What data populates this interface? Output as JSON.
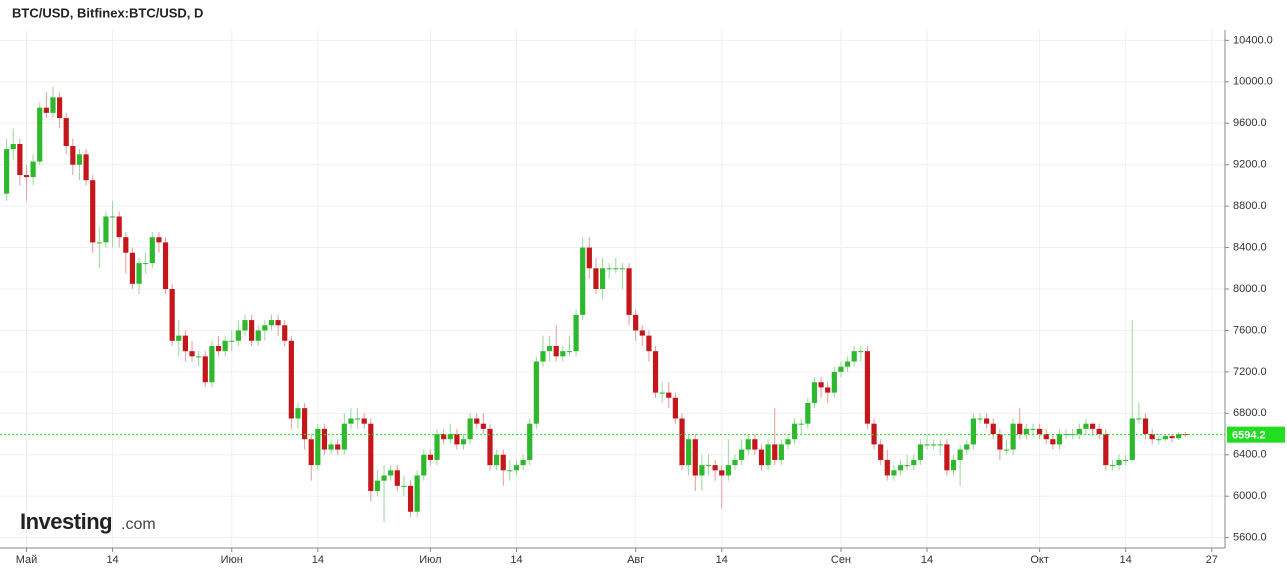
{
  "chart_data": {
    "type": "candlestick",
    "title": "BTC/USD, Bitfinex:BTC/USD, D",
    "watermark": "Investing",
    "watermark_suffix": ".com",
    "up_color": "#2eb82e",
    "down_color": "#c4171b",
    "last_price_color": "#22dd22",
    "grid": true,
    "xlim": [
      "04-27",
      "10-29"
    ],
    "ylim": [
      5500,
      10500
    ],
    "xticks": [
      {
        "value": "05-01",
        "label": "Май"
      },
      {
        "value": "05-14",
        "label": "14"
      },
      {
        "value": "06-01",
        "label": "Июн"
      },
      {
        "value": "06-14",
        "label": "14"
      },
      {
        "value": "07-01",
        "label": "Июл"
      },
      {
        "value": "07-14",
        "label": "14"
      },
      {
        "value": "08-01",
        "label": "Авг"
      },
      {
        "value": "08-14",
        "label": "14"
      },
      {
        "value": "09-01",
        "label": "Сен"
      },
      {
        "value": "09-14",
        "label": "14"
      },
      {
        "value": "10-01",
        "label": "Окт"
      },
      {
        "value": "10-14",
        "label": "14"
      },
      {
        "value": "10-27",
        "label": "27"
      }
    ],
    "yticks": [
      {
        "value": 5600,
        "label": "5600.0"
      },
      {
        "value": 6000,
        "label": "6000.0"
      },
      {
        "value": 6400,
        "label": "6400.0"
      },
      {
        "value": 6800,
        "label": "6800.0"
      },
      {
        "value": 7200,
        "label": "7200.0"
      },
      {
        "value": 7600,
        "label": "7600.0"
      },
      {
        "value": 8000,
        "label": "8000.0"
      },
      {
        "value": 8400,
        "label": "8400.0"
      },
      {
        "value": 8800,
        "label": "8800.0"
      },
      {
        "value": 9200,
        "label": "9200.0"
      },
      {
        "value": 9600,
        "label": "9600.0"
      },
      {
        "value": 10000,
        "label": "10000.0"
      },
      {
        "value": 10400,
        "label": "10400.0"
      }
    ],
    "x": [
      "04-28",
      "04-29",
      "04-30",
      "05-01",
      "05-02",
      "05-03",
      "05-04",
      "05-05",
      "05-06",
      "05-07",
      "05-08",
      "05-09",
      "05-10",
      "05-11",
      "05-12",
      "05-13",
      "05-14",
      "05-15",
      "05-16",
      "05-17",
      "05-18",
      "05-19",
      "05-20",
      "05-21",
      "05-22",
      "05-23",
      "05-24",
      "05-25",
      "05-26",
      "05-27",
      "05-28",
      "05-29",
      "05-30",
      "05-31",
      "06-01",
      "06-02",
      "06-03",
      "06-04",
      "06-05",
      "06-06",
      "06-07",
      "06-08",
      "06-09",
      "06-10",
      "06-11",
      "06-12",
      "06-13",
      "06-14",
      "06-15",
      "06-16",
      "06-17",
      "06-18",
      "06-19",
      "06-20",
      "06-21",
      "06-22",
      "06-23",
      "06-24",
      "06-25",
      "06-26",
      "06-27",
      "06-28",
      "06-29",
      "06-30",
      "07-01",
      "07-02",
      "07-03",
      "07-04",
      "07-05",
      "07-06",
      "07-07",
      "07-08",
      "07-09",
      "07-10",
      "07-11",
      "07-12",
      "07-13",
      "07-14",
      "07-15",
      "07-16",
      "07-17",
      "07-18",
      "07-19",
      "07-20",
      "07-21",
      "07-22",
      "07-23",
      "07-24",
      "07-25",
      "07-26",
      "07-27",
      "07-28",
      "07-29",
      "07-30",
      "07-31",
      "08-01",
      "08-02",
      "08-03",
      "08-04",
      "08-05",
      "08-06",
      "08-07",
      "08-08",
      "08-09",
      "08-10",
      "08-11",
      "08-12",
      "08-13",
      "08-14",
      "08-15",
      "08-16",
      "08-17",
      "08-18",
      "08-19",
      "08-20",
      "08-21",
      "08-22",
      "08-23",
      "08-24",
      "08-25",
      "08-26",
      "08-27",
      "08-28",
      "08-29",
      "08-30",
      "08-31",
      "09-01",
      "09-02",
      "09-03",
      "09-04",
      "09-05",
      "09-06",
      "09-07",
      "09-08",
      "09-09",
      "09-10",
      "09-11",
      "09-12",
      "09-13",
      "09-14",
      "09-15",
      "09-16",
      "09-17",
      "09-18",
      "09-19",
      "09-20",
      "09-21",
      "09-22",
      "09-23",
      "09-24",
      "09-25",
      "09-26",
      "09-27",
      "09-28",
      "09-29",
      "09-30",
      "10-01",
      "10-02",
      "10-03",
      "10-04",
      "10-05",
      "10-06",
      "10-07",
      "10-08",
      "10-09",
      "10-10",
      "10-11",
      "10-12",
      "10-13",
      "10-14",
      "10-15",
      "10-16",
      "10-17",
      "10-18",
      "10-19",
      "10-20",
      "10-21",
      "10-22",
      "10-23"
    ],
    "open": [
      8920,
      9350,
      9400,
      9100,
      9080,
      9230,
      9750,
      9700,
      9850,
      9650,
      9380,
      9200,
      9300,
      9050,
      8450,
      8450,
      8700,
      8700,
      8500,
      8350,
      8050,
      8250,
      8250,
      8500,
      8450,
      8000,
      7500,
      7550,
      7400,
      7350,
      7350,
      7100,
      7450,
      7400,
      7500,
      7500,
      7600,
      7700,
      7500,
      7600,
      7650,
      7700,
      7650,
      7500,
      6750,
      6850,
      6550,
      6300,
      6650,
      6450,
      6500,
      6450,
      6700,
      6750,
      6750,
      6700,
      6050,
      6150,
      6200,
      6250,
      6100,
      6100,
      5850,
      6200,
      6400,
      6350,
      6600,
      6550,
      6600,
      6500,
      6550,
      6750,
      6700,
      6650,
      6300,
      6400,
      6250,
      6250,
      6300,
      6350,
      6700,
      7300,
      7400,
      7450,
      7350,
      7400,
      7400,
      7750,
      8400,
      8200,
      8000,
      8200,
      8200,
      8200,
      8200,
      7750,
      7600,
      7550,
      7400,
      7000,
      7000,
      6950,
      6750,
      6300,
      6550,
      6200,
      6300,
      6300,
      6250,
      6200,
      6300,
      6350,
      6450,
      6550,
      6450,
      6300,
      6500,
      6350,
      6500,
      6550,
      6700,
      6700,
      6900,
      7100,
      7050,
      7000,
      7200,
      7250,
      7300,
      7400,
      7400,
      6700,
      6500,
      6350,
      6200,
      6250,
      6300,
      6300,
      6350,
      6500,
      6500,
      6500,
      6500,
      6250,
      6350,
      6450,
      6500,
      6750,
      6750,
      6700,
      6600,
      6450,
      6450,
      6700,
      6600,
      6650,
      6650,
      6600,
      6550,
      6500,
      6600,
      6600,
      6600,
      6650,
      6700,
      6650,
      6600,
      6300,
      6300,
      6350,
      6350,
      6750,
      6750,
      6600,
      6550,
      6550,
      6580,
      6560,
      6600
    ],
    "high": [
      9450,
      9550,
      9450,
      9200,
      9300,
      9800,
      9900,
      9950,
      9900,
      9700,
      9450,
      9350,
      9350,
      9100,
      8600,
      8750,
      8850,
      8750,
      8550,
      8400,
      8300,
      8350,
      8550,
      8550,
      8500,
      8050,
      7700,
      7600,
      7500,
      7400,
      7400,
      7500,
      7550,
      7550,
      7600,
      7700,
      7750,
      7750,
      7650,
      7700,
      7750,
      7750,
      7700,
      7550,
      6900,
      6900,
      6600,
      6700,
      6700,
      6550,
      6550,
      6800,
      6850,
      6850,
      6800,
      6750,
      6250,
      6300,
      6300,
      6300,
      6200,
      6150,
      6250,
      6450,
      6450,
      6650,
      6650,
      6700,
      6650,
      6600,
      6800,
      6800,
      6800,
      6700,
      6450,
      6450,
      6350,
      6350,
      6400,
      6750,
      7350,
      7550,
      7550,
      7650,
      7450,
      7550,
      7800,
      8500,
      8500,
      8300,
      8300,
      8250,
      8300,
      8250,
      8250,
      7800,
      7650,
      7600,
      7450,
      7100,
      7100,
      7000,
      6800,
      6600,
      6600,
      6400,
      6400,
      6350,
      6300,
      6550,
      6400,
      6550,
      6600,
      6600,
      6500,
      6550,
      6850,
      6550,
      6600,
      6750,
      6750,
      6950,
      7150,
      7150,
      7100,
      7250,
      7300,
      7350,
      7450,
      7450,
      7450,
      6750,
      6550,
      6450,
      6300,
      6350,
      6400,
      6400,
      6550,
      6600,
      6550,
      6550,
      6550,
      6400,
      6500,
      6550,
      6800,
      6800,
      6800,
      6750,
      6650,
      6550,
      6750,
      6850,
      6700,
      6700,
      6700,
      6650,
      6600,
      6650,
      6650,
      6650,
      6700,
      6750,
      6700,
      6700,
      6650,
      6350,
      6400,
      6400,
      7700,
      6900,
      6800,
      6650,
      6600,
      6600,
      6600,
      6620,
      6620
    ],
    "low": [
      8850,
      9250,
      9000,
      8850,
      9000,
      9200,
      9650,
      9650,
      9550,
      9300,
      9100,
      9050,
      9000,
      8350,
      8200,
      8400,
      8400,
      8400,
      8150,
      8000,
      7950,
      8150,
      8200,
      8350,
      7950,
      7450,
      7350,
      7300,
      7300,
      7250,
      7050,
      7050,
      7350,
      7350,
      7400,
      7450,
      7550,
      7450,
      7450,
      7500,
      7600,
      7550,
      7450,
      6650,
      6650,
      6450,
      6150,
      6250,
      6400,
      6400,
      6400,
      6400,
      6650,
      6650,
      6650,
      5950,
      6000,
      5750,
      6150,
      6050,
      6000,
      5800,
      5800,
      6150,
      6300,
      6300,
      6500,
      6500,
      6450,
      6450,
      6500,
      6650,
      6600,
      6250,
      6250,
      6100,
      6150,
      6200,
      6250,
      6300,
      6650,
      7250,
      7300,
      7300,
      7300,
      7350,
      7350,
      7700,
      8100,
      7950,
      7900,
      8100,
      8150,
      8000,
      7650,
      7500,
      7450,
      7300,
      6950,
      6900,
      6850,
      6700,
      6250,
      6200,
      6050,
      6050,
      6200,
      6150,
      5880,
      6150,
      6250,
      6300,
      6400,
      6400,
      6250,
      6250,
      6300,
      6300,
      6450,
      6500,
      6600,
      6650,
      6850,
      6950,
      6900,
      6950,
      7150,
      7200,
      7250,
      7300,
      6650,
      6450,
      6300,
      6150,
      6150,
      6200,
      6250,
      6250,
      6300,
      6450,
      6450,
      6400,
      6200,
      6200,
      6100,
      6400,
      6450,
      6700,
      6650,
      6550,
      6350,
      6400,
      6400,
      6550,
      6550,
      6600,
      6550,
      6500,
      6450,
      6450,
      6550,
      6550,
      6550,
      6600,
      6600,
      6550,
      6250,
      6250,
      6250,
      6300,
      6350,
      6700,
      6550,
      6500,
      6500,
      6530,
      6520,
      6540,
      6570
    ],
    "close": [
      9350,
      9400,
      9100,
      9080,
      9230,
      9750,
      9700,
      9850,
      9650,
      9380,
      9200,
      9300,
      9050,
      8450,
      8450,
      8700,
      8700,
      8500,
      8350,
      8050,
      8250,
      8250,
      8500,
      8450,
      8000,
      7500,
      7550,
      7400,
      7350,
      7350,
      7100,
      7450,
      7400,
      7500,
      7500,
      7600,
      7700,
      7500,
      7600,
      7650,
      7700,
      7650,
      7500,
      6750,
      6850,
      6550,
      6300,
      6650,
      6450,
      6500,
      6450,
      6700,
      6750,
      6750,
      6700,
      6050,
      6150,
      6200,
      6250,
      6100,
      6100,
      5850,
      6200,
      6400,
      6350,
      6600,
      6550,
      6600,
      6500,
      6550,
      6750,
      6700,
      6650,
      6300,
      6400,
      6250,
      6250,
      6300,
      6350,
      6700,
      7300,
      7400,
      7450,
      7350,
      7400,
      7400,
      7750,
      8400,
      8200,
      8000,
      8200,
      8200,
      8200,
      8200,
      7750,
      7600,
      7550,
      7400,
      7000,
      7000,
      6950,
      6750,
      6300,
      6550,
      6200,
      6300,
      6300,
      6250,
      6200,
      6300,
      6350,
      6450,
      6550,
      6450,
      6300,
      6500,
      6350,
      6500,
      6550,
      6700,
      6700,
      6900,
      7100,
      7050,
      7000,
      7200,
      7250,
      7300,
      7400,
      7400,
      6700,
      6500,
      6350,
      6200,
      6250,
      6300,
      6300,
      6350,
      6500,
      6500,
      6500,
      6500,
      6250,
      6350,
      6450,
      6500,
      6750,
      6750,
      6700,
      6600,
      6450,
      6450,
      6700,
      6600,
      6650,
      6650,
      6600,
      6550,
      6500,
      6600,
      6600,
      6600,
      6650,
      6700,
      6650,
      6600,
      6300,
      6300,
      6350,
      6350,
      6750,
      6750,
      6600,
      6550,
      6550,
      6580,
      6560,
      6600,
      6594.2
    ]
  }
}
